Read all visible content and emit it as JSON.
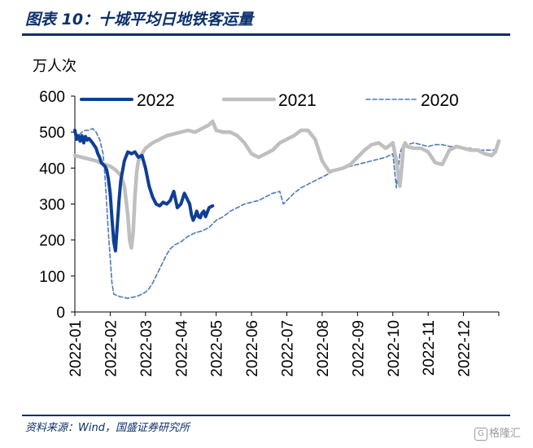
{
  "header": {
    "title": "图表 10：十城平均日地铁客运量"
  },
  "footer": {
    "source": "资料来源：Wind，国盛证券研究所",
    "watermark": "格隆汇"
  },
  "chart_data": {
    "type": "line",
    "ylabel": "万人次",
    "ylim": [
      0,
      600
    ],
    "yticks": [
      0,
      100,
      200,
      300,
      400,
      500,
      600
    ],
    "xlim": [
      1,
      13
    ],
    "x_tick_labels": [
      "2022-01",
      "2022-02",
      "2022-03",
      "2022-04",
      "2022-05",
      "2022-06",
      "2022-07",
      "2022-08",
      "2022-09",
      "2022-10",
      "2022-11",
      "2022-12"
    ],
    "legend_position": "top",
    "series": [
      {
        "name": "2022",
        "color": "#0f3e96",
        "style": "solid-thick",
        "x": [
          1.0,
          1.05,
          1.1,
          1.15,
          1.2,
          1.25,
          1.3,
          1.35,
          1.4,
          1.5,
          1.6,
          1.65,
          1.7,
          1.75,
          1.8,
          1.85,
          1.9,
          1.95,
          2.0,
          2.05,
          2.1,
          2.15,
          2.2,
          2.25,
          2.3,
          2.4,
          2.5,
          2.6,
          2.7,
          2.8,
          2.9,
          3.0,
          3.1,
          3.2,
          3.3,
          3.4,
          3.5,
          3.6,
          3.7,
          3.8,
          3.9,
          4.0,
          4.1,
          4.2,
          4.25,
          4.3,
          4.35,
          4.4,
          4.45,
          4.5,
          4.55,
          4.6,
          4.65,
          4.7,
          4.8,
          4.9
        ],
        "values": [
          505,
          480,
          490,
          475,
          490,
          470,
          488,
          478,
          482,
          470,
          455,
          440,
          430,
          415,
          410,
          405,
          395,
          370,
          330,
          260,
          195,
          170,
          240,
          310,
          365,
          420,
          445,
          440,
          445,
          430,
          435,
          400,
          350,
          320,
          300,
          295,
          305,
          300,
          310,
          335,
          290,
          300,
          330,
          310,
          300,
          270,
          255,
          265,
          280,
          265,
          262,
          275,
          280,
          265,
          290,
          295
        ]
      },
      {
        "name": "2021",
        "color": "#bfbfbf",
        "style": "solid-thick",
        "x": [
          1.0,
          1.2,
          1.4,
          1.6,
          1.8,
          2.0,
          2.15,
          2.3,
          2.4,
          2.5,
          2.55,
          2.6,
          2.65,
          2.7,
          2.75,
          2.8,
          2.9,
          3.0,
          3.2,
          3.4,
          3.6,
          3.8,
          4.0,
          4.2,
          4.4,
          4.6,
          4.8,
          4.9,
          5.0,
          5.2,
          5.4,
          5.6,
          5.8,
          6.0,
          6.2,
          6.4,
          6.6,
          6.8,
          7.0,
          7.2,
          7.4,
          7.6,
          7.8,
          8.0,
          8.2,
          8.4,
          8.6,
          8.8,
          9.0,
          9.2,
          9.4,
          9.6,
          9.8,
          10.0,
          10.1,
          10.2,
          10.25,
          10.3,
          10.35,
          10.4,
          10.6,
          10.8,
          11.0,
          11.2,
          11.4,
          11.5,
          11.6,
          11.7,
          11.8,
          12.0,
          12.2,
          12.4,
          12.6,
          12.8,
          12.9,
          13.0
        ],
        "values": [
          435,
          430,
          425,
          420,
          412,
          405,
          395,
          380,
          350,
          270,
          200,
          178,
          220,
          320,
          390,
          420,
          440,
          455,
          470,
          480,
          490,
          495,
          500,
          505,
          500,
          510,
          520,
          530,
          505,
          500,
          500,
          490,
          470,
          440,
          430,
          440,
          450,
          470,
          480,
          490,
          505,
          505,
          480,
          420,
          390,
          395,
          400,
          410,
          430,
          450,
          465,
          470,
          455,
          470,
          420,
          350,
          400,
          460,
          470,
          460,
          455,
          455,
          445,
          415,
          410,
          430,
          450,
          455,
          460,
          455,
          450,
          450,
          440,
          435,
          445,
          475
        ]
      },
      {
        "name": "2020",
        "color": "#4d79b8",
        "style": "dashed",
        "x": [
          1.0,
          1.1,
          1.2,
          1.3,
          1.4,
          1.5,
          1.6,
          1.7,
          1.8,
          1.85,
          1.9,
          1.95,
          2.0,
          2.05,
          2.1,
          2.2,
          2.3,
          2.4,
          2.5,
          2.6,
          2.7,
          2.8,
          2.9,
          3.0,
          3.1,
          3.2,
          3.3,
          3.4,
          3.5,
          3.6,
          3.7,
          3.8,
          3.9,
          4.0,
          4.2,
          4.4,
          4.6,
          4.8,
          5.0,
          5.2,
          5.4,
          5.6,
          5.8,
          6.0,
          6.2,
          6.4,
          6.6,
          6.8,
          6.9,
          7.0,
          7.2,
          7.4,
          7.6,
          7.8,
          8.0,
          8.2,
          8.4,
          8.6,
          8.8,
          9.0,
          9.2,
          9.4,
          9.6,
          9.8,
          10.0,
          10.1,
          10.2,
          10.25,
          10.3,
          10.4,
          10.6,
          10.8,
          11.0,
          11.2,
          11.4,
          11.6,
          11.8,
          12.0,
          12.2,
          12.4,
          12.6,
          12.8,
          13.0
        ],
        "values": [
          480,
          490,
          500,
          505,
          505,
          510,
          500,
          480,
          440,
          380,
          300,
          220,
          150,
          80,
          50,
          45,
          42,
          40,
          38,
          40,
          42,
          45,
          50,
          55,
          65,
          80,
          100,
          120,
          140,
          160,
          175,
          185,
          190,
          195,
          210,
          220,
          225,
          235,
          255,
          265,
          280,
          290,
          300,
          305,
          310,
          320,
          330,
          335,
          300,
          310,
          330,
          345,
          355,
          365,
          375,
          385,
          395,
          400,
          405,
          410,
          415,
          420,
          425,
          430,
          440,
          345,
          440,
          455,
          460,
          465,
          470,
          465,
          460,
          465,
          465,
          460,
          460,
          455,
          455,
          450,
          450,
          450,
          450
        ]
      }
    ]
  }
}
